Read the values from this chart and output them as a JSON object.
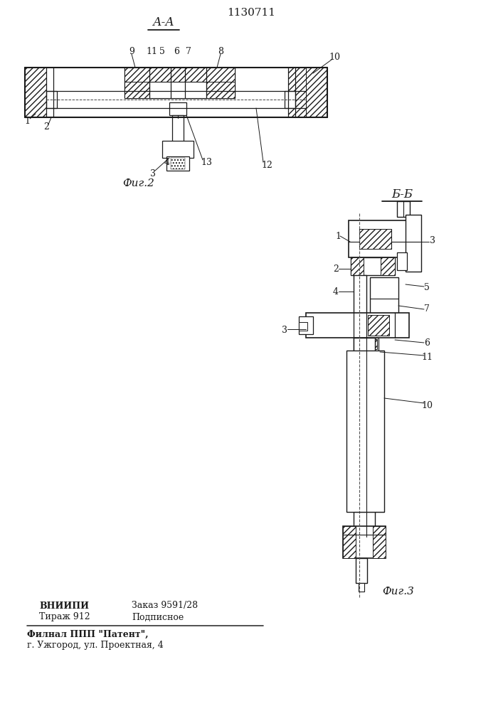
{
  "title": "1130711",
  "fig2_label": "А-А",
  "fig2_caption": "Фиг.2",
  "fig3_caption": "Фиг.3",
  "section_label": "Б-Б",
  "footer_line1_bold": "ВНИИПИ",
  "footer_line1_right": "Заказ 9591/28",
  "footer_line2_left": "Тираж 912",
  "footer_line2_right": "Подписное",
  "footer_line3": "Филнал ППП \"Патент\",",
  "footer_line4": "г. Ужгород, ул. Проектная, 4",
  "bg_color": "#ffffff",
  "line_color": "#1a1a1a"
}
